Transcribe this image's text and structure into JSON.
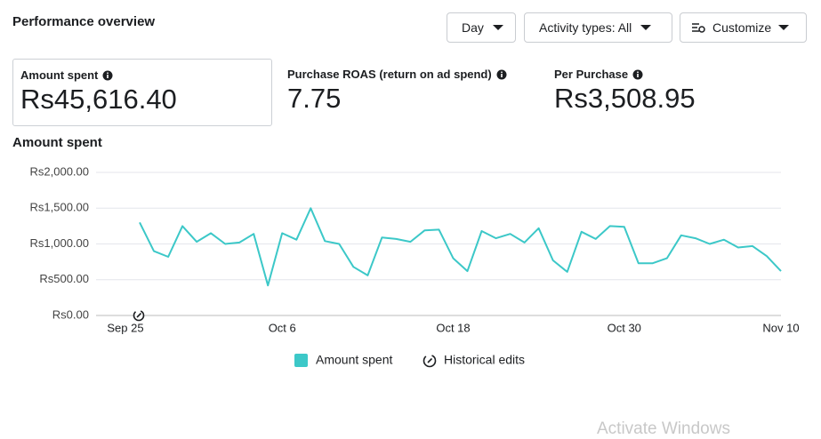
{
  "header": {
    "title": "Performance overview"
  },
  "controls": [
    {
      "label": "Day"
    },
    {
      "label": "Activity types: All"
    },
    {
      "label": "Customize"
    }
  ],
  "metrics": [
    {
      "label": "Amount spent",
      "value": "Rs45,616.40"
    },
    {
      "label": "Purchase ROAS (return on ad spend)",
      "value": "7.75"
    },
    {
      "label": "Per Purchase",
      "value": "Rs3,508.95"
    }
  ],
  "chart_data": {
    "type": "line",
    "title": "Amount spent",
    "categories": [
      "Sep 25",
      null,
      null,
      null,
      null,
      null,
      null,
      null,
      null,
      null,
      null,
      "Oct 6",
      null,
      null,
      null,
      null,
      null,
      null,
      null,
      null,
      null,
      null,
      null,
      "Oct 18",
      null,
      null,
      null,
      null,
      null,
      null,
      null,
      null,
      null,
      null,
      null,
      "Oct 30",
      null,
      null,
      null,
      null,
      null,
      null,
      null,
      null,
      null,
      null,
      "Nov 10"
    ],
    "series": [
      {
        "name": "Amount spent",
        "color": "#3cc8c8",
        "values": [
          null,
          1300,
          900,
          820,
          1250,
          1030,
          1150,
          1000,
          1020,
          1140,
          420,
          1150,
          1060,
          1500,
          1040,
          1000,
          680,
          560,
          1090,
          1070,
          1030,
          1190,
          1200,
          800,
          620,
          1180,
          1080,
          1140,
          1020,
          1220,
          770,
          610,
          1170,
          1070,
          1250,
          1240,
          730,
          730,
          800,
          1120,
          1080,
          1000,
          1060,
          950,
          970,
          830,
          620
        ]
      }
    ],
    "ylim": [
      0,
      2000
    ],
    "yticks": [
      {
        "value": 0,
        "label": "Rs0.00"
      },
      {
        "value": 500,
        "label": "Rs500.00"
      },
      {
        "value": 1000,
        "label": "Rs1,000.00"
      },
      {
        "value": 1500,
        "label": "Rs1,500.00"
      },
      {
        "value": 2000,
        "label": "Rs2,000.00"
      }
    ],
    "grid": true,
    "historical_edits_label": "Historical edits"
  },
  "watermark": "Activate Windows"
}
